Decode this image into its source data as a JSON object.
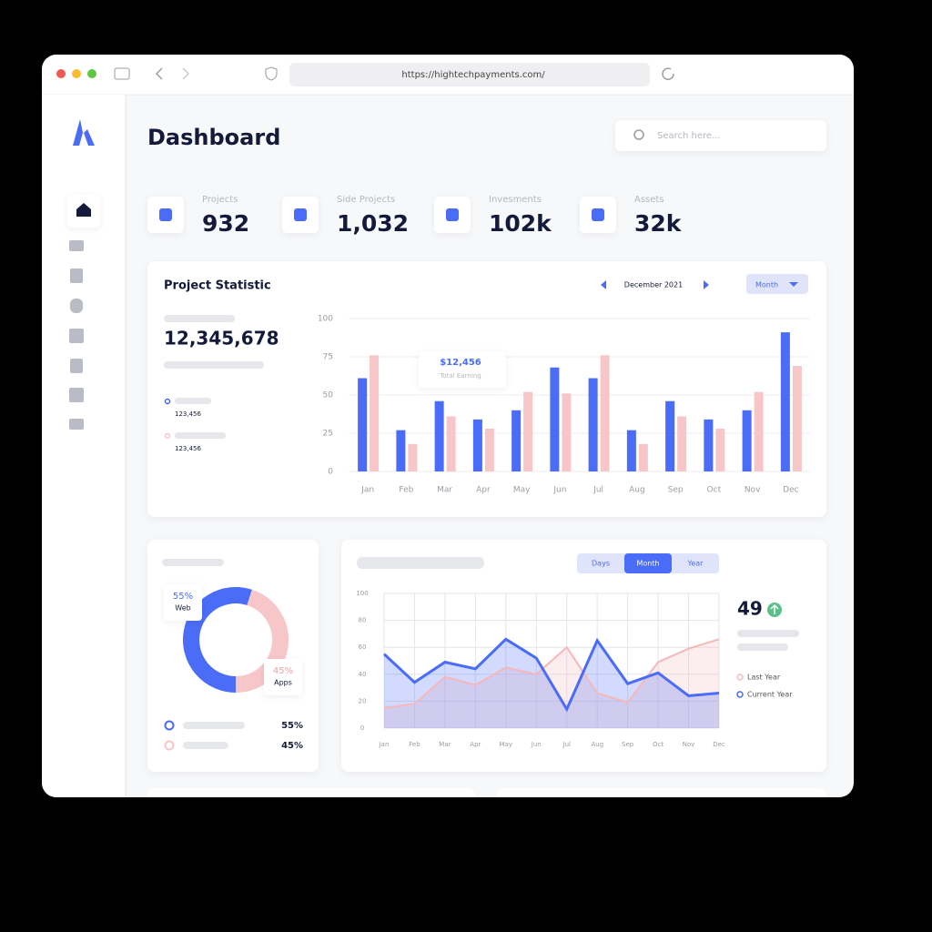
{
  "browser": {
    "url": "https://hightechpayments.com/"
  },
  "header": {
    "title": "Dashboard",
    "search_placeholder": "Search here..."
  },
  "stats": [
    {
      "label": "Projects",
      "value": "932"
    },
    {
      "label": "Side Projects",
      "value": "1,032"
    },
    {
      "label": "Invesments",
      "value": "102k"
    },
    {
      "label": "Assets",
      "value": "32k"
    }
  ],
  "chart_data": [
    {
      "type": "bar",
      "title": "Project Statistic",
      "period": "December 2021",
      "period_unit": "Month",
      "total": "12,345,678",
      "legend_values": [
        "123,456",
        "123,456"
      ],
      "tooltip": {
        "value": "$12,456",
        "label": "Total Earning"
      },
      "categories": [
        "Jan",
        "Feb",
        "Mar",
        "Apr",
        "May",
        "Jun",
        "Jul",
        "Aug",
        "Sep",
        "Oct",
        "Nov",
        "Dec"
      ],
      "series": [
        {
          "color": "#4a6cf7",
          "values": [
            61,
            27,
            46,
            34,
            40,
            68,
            61,
            27,
            46,
            34,
            40,
            91
          ]
        },
        {
          "color": "#f6c6c8",
          "values": [
            76,
            18,
            36,
            28,
            52,
            51,
            76,
            18,
            36,
            28,
            52,
            69
          ]
        }
      ],
      "ylim": [
        0,
        100
      ],
      "yticks": [
        0,
        25,
        50,
        75,
        100
      ],
      "grid": true
    },
    {
      "type": "pie",
      "categories": [
        "Web",
        "Apps"
      ],
      "values": [
        55,
        45
      ],
      "value_labels": [
        "55%",
        "45%"
      ],
      "colors": [
        "#4a6cf7",
        "#f6c6c8"
      ]
    },
    {
      "type": "line",
      "tabs": [
        "Days",
        "Month",
        "Year"
      ],
      "active_tab": 1,
      "headline": 49,
      "categories": [
        "Jan",
        "Feb",
        "Mar",
        "Apr",
        "May",
        "Jun",
        "Jul",
        "Aug",
        "Sep",
        "Oct",
        "Nov",
        "Dec"
      ],
      "series": [
        {
          "name": "Last Year",
          "color": "#f4b8bb",
          "values": [
            15,
            18,
            38,
            32,
            45,
            40,
            60,
            26,
            19,
            49,
            59,
            66
          ]
        },
        {
          "name": "Current Year",
          "color": "#4a6cf7",
          "values": [
            55,
            34,
            49,
            44,
            66,
            52,
            14,
            65,
            33,
            41,
            24,
            26
          ]
        }
      ],
      "ylim": [
        0,
        100
      ],
      "yticks": [
        0,
        20,
        40,
        60,
        80,
        100
      ],
      "grid": true
    }
  ]
}
